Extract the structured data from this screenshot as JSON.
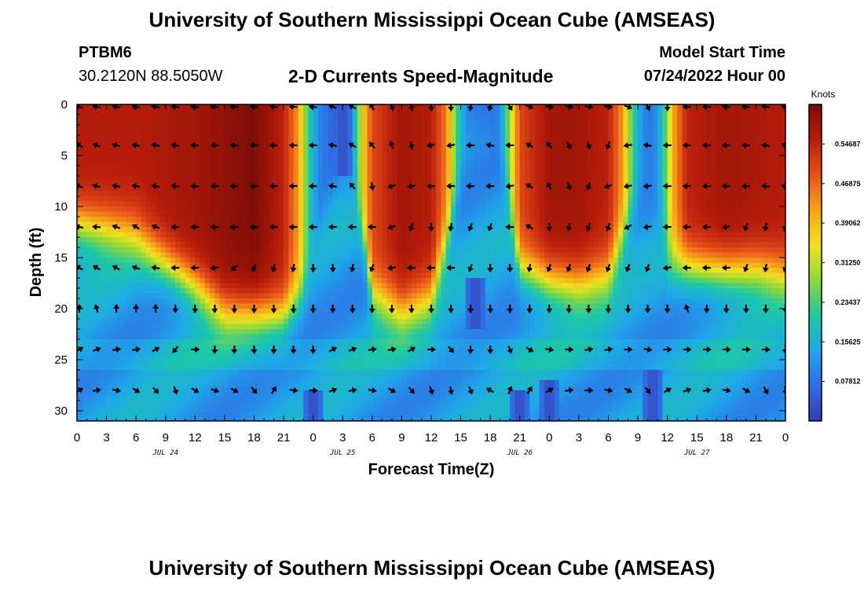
{
  "header": {
    "title": "University of Southern Mississippi Ocean Cube (AMSEAS)",
    "station_id": "PTBM6",
    "station_coords": "30.2120N  88.5050W",
    "subtitle": "2-D Currents Speed-Magnitude",
    "start_label": "Model Start Time",
    "start_value": "07/24/2022 Hour 00"
  },
  "footer": {
    "title": "University of Southern Mississippi Ocean Cube (AMSEAS)"
  },
  "colors": {
    "arrow": "#000000",
    "colormap": [
      "#3a3ab0",
      "#2f6ee6",
      "#1fa8e8",
      "#1cc8a6",
      "#8fd83a",
      "#f0e21e",
      "#f7a21a",
      "#e8521a",
      "#b81d0b",
      "#7a0c06"
    ]
  },
  "chart_data": {
    "type": "heatmap",
    "title": "2-D Currents Speed-Magnitude",
    "xlabel": "Forecast Time(Z)",
    "ylabel": "Depth (ft)",
    "xlim": [
      0,
      72
    ],
    "ylim": [
      0,
      31
    ],
    "x_ticks_hours": [
      0,
      3,
      6,
      9,
      12,
      15,
      18,
      21,
      24,
      27,
      30,
      33,
      36,
      39,
      42,
      45,
      48,
      51,
      54,
      57,
      60,
      63,
      66,
      69,
      72
    ],
    "x_tick_labels": [
      "0",
      "3",
      "6",
      "9",
      "12",
      "15",
      "18",
      "21",
      "0",
      "3",
      "6",
      "9",
      "12",
      "15",
      "18",
      "21",
      "0",
      "3",
      "6",
      "9",
      "12",
      "15",
      "18",
      "21",
      "0"
    ],
    "y_ticks": [
      0,
      5,
      10,
      15,
      20,
      25,
      30
    ],
    "y_tick_labels": [
      "0",
      "5",
      "10",
      "15",
      "20",
      "25",
      "30"
    ],
    "day_labels": [
      {
        "hour": 9,
        "text": "JUL 24"
      },
      {
        "hour": 27,
        "text": "JUL 25"
      },
      {
        "hour": 45,
        "text": "JUL 26"
      },
      {
        "hour": 63,
        "text": "JUL 27"
      }
    ],
    "colorbar": {
      "unit": "Knots",
      "min": 0,
      "max": 0.625,
      "tick_values": [
        0.546875,
        0.46875,
        0.390625,
        0.3125,
        0.234375,
        0.15625,
        0.078125
      ],
      "tick_labels": [
        "0.54687",
        "0.46875",
        "0.39062",
        "0.31250",
        "0.23437",
        "0.15625",
        "0.07812"
      ]
    },
    "speed_model": {
      "description": "Approximate current speed (knots) by forecast hour and depth read from colors",
      "surface_speed_by_hour": [
        [
          0,
          0.56
        ],
        [
          6,
          0.56
        ],
        [
          12,
          0.58
        ],
        [
          18,
          0.62
        ],
        [
          21,
          0.55
        ],
        [
          22.5,
          0.42
        ],
        [
          23.5,
          0.22
        ],
        [
          24.5,
          0.1
        ],
        [
          26,
          0.05
        ],
        [
          27,
          0.05
        ],
        [
          28,
          0.12
        ],
        [
          29,
          0.35
        ],
        [
          30,
          0.5
        ],
        [
          33,
          0.58
        ],
        [
          36,
          0.56
        ],
        [
          37.5,
          0.45
        ],
        [
          38.5,
          0.25
        ],
        [
          39.5,
          0.1
        ],
        [
          41,
          0.06
        ],
        [
          42,
          0.05
        ],
        [
          43,
          0.1
        ],
        [
          44,
          0.3
        ],
        [
          45,
          0.5
        ],
        [
          48,
          0.58
        ],
        [
          51,
          0.58
        ],
        [
          54,
          0.55
        ],
        [
          55.5,
          0.42
        ],
        [
          56.5,
          0.22
        ],
        [
          57.5,
          0.1
        ],
        [
          58.5,
          0.08
        ],
        [
          59.5,
          0.18
        ],
        [
          60.5,
          0.4
        ],
        [
          62,
          0.55
        ],
        [
          66,
          0.58
        ],
        [
          72,
          0.56
        ]
      ],
      "front_depth_by_hour": [
        [
          0,
          12
        ],
        [
          6,
          13
        ],
        [
          9,
          15.5
        ],
        [
          12,
          18
        ],
        [
          15,
          20.5
        ],
        [
          18,
          20.5
        ],
        [
          21,
          20.5
        ],
        [
          23,
          18
        ],
        [
          24.5,
          12
        ],
        [
          26,
          6
        ],
        [
          27,
          4
        ],
        [
          29,
          12
        ],
        [
          30,
          19
        ],
        [
          33,
          20.5
        ],
        [
          36,
          19
        ],
        [
          38,
          12
        ],
        [
          39.5,
          4
        ],
        [
          42,
          2
        ],
        [
          44,
          10
        ],
        [
          45,
          16
        ],
        [
          48,
          17.5
        ],
        [
          51,
          18
        ],
        [
          54,
          17
        ],
        [
          56,
          12
        ],
        [
          57.5,
          8
        ],
        [
          59,
          10
        ],
        [
          60,
          15
        ],
        [
          63,
          16
        ],
        [
          66,
          16.5
        ],
        [
          69,
          16.5
        ],
        [
          72,
          17
        ]
      ],
      "deep_slow_cores": [
        {
          "hour": 24,
          "depth_from": 28,
          "depth_to": 31
        },
        {
          "hour": 48,
          "depth_from": 27,
          "depth_to": 31
        },
        {
          "hour": 27,
          "depth_from": 0,
          "depth_to": 7
        },
        {
          "hour": 40.5,
          "depth_from": 17,
          "depth_to": 22
        },
        {
          "hour": 58.5,
          "depth_from": 26,
          "depth_to": 31
        },
        {
          "hour": 45,
          "depth_from": 28,
          "depth_to": 31
        }
      ]
    },
    "vectors": {
      "hours": [
        0,
        2,
        4,
        6,
        8,
        10,
        12,
        14,
        16,
        18,
        20,
        22,
        24,
        26,
        28,
        30,
        32,
        34,
        36,
        38,
        40,
        42,
        44,
        46,
        48,
        50,
        52,
        54,
        56,
        58,
        60,
        62,
        64,
        66,
        68,
        70,
        72
      ],
      "depths": [
        0,
        4,
        8,
        12,
        16,
        20,
        24,
        28
      ],
      "directions_deg": [
        [
          285,
          280,
          280,
          280,
          280,
          275,
          275,
          275,
          275,
          275,
          275,
          275,
          280,
          290,
          300,
          330,
          160,
          170,
          175,
          180,
          190,
          200,
          150,
          110,
          100,
          100,
          95,
          100,
          110,
          150,
          180,
          270,
          270,
          275,
          275,
          275,
          275
        ],
        [
          300,
          290,
          285,
          280,
          280,
          280,
          275,
          270,
          270,
          270,
          270,
          270,
          270,
          280,
          300,
          320,
          340,
          170,
          260,
          260,
          270,
          280,
          270,
          300,
          320,
          150,
          160,
          200,
          260,
          280,
          270,
          270,
          270,
          270,
          270,
          280,
          285
        ],
        [
          290,
          285,
          280,
          280,
          280,
          275,
          275,
          270,
          270,
          270,
          270,
          270,
          270,
          280,
          320,
          170,
          250,
          260,
          270,
          270,
          270,
          270,
          260,
          300,
          330,
          160,
          200,
          250,
          260,
          265,
          270,
          270,
          270,
          270,
          270,
          275,
          280
        ],
        [
          280,
          275,
          290,
          300,
          290,
          270,
          270,
          270,
          270,
          270,
          270,
          270,
          270,
          270,
          270,
          270,
          250,
          200,
          180,
          190,
          200,
          200,
          270,
          300,
          180,
          190,
          200,
          200,
          240,
          260,
          270,
          270,
          270,
          260,
          200,
          190,
          200
        ],
        [
          300,
          300,
          300,
          290,
          280,
          270,
          270,
          260,
          230,
          200,
          190,
          190,
          180,
          180,
          190,
          200,
          260,
          270,
          270,
          270,
          200,
          180,
          180,
          190,
          200,
          200,
          200,
          200,
          200,
          200,
          260,
          270,
          270,
          270,
          200,
          190,
          200
        ],
        [
          0,
          345,
          0,
          0,
          0,
          180,
          180,
          180,
          180,
          180,
          180,
          180,
          180,
          180,
          180,
          180,
          180,
          180,
          180,
          180,
          180,
          180,
          180,
          180,
          180,
          180,
          180,
          180,
          180,
          180,
          180,
          340,
          180,
          180,
          180,
          180,
          180
        ],
        [
          60,
          70,
          80,
          80,
          60,
          220,
          90,
          180,
          180,
          180,
          180,
          180,
          180,
          60,
          70,
          80,
          80,
          60,
          90,
          140,
          180,
          180,
          160,
          120,
          100,
          90,
          80,
          80,
          90,
          100,
          90,
          90,
          90,
          90,
          90,
          90,
          180
        ],
        [
          60,
          80,
          100,
          120,
          140,
          160,
          120,
          110,
          120,
          140,
          30,
          100,
          90,
          70,
          80,
          100,
          120,
          140,
          160,
          170,
          160,
          300,
          20,
          30,
          60,
          80,
          90,
          100,
          120,
          140,
          60,
          70,
          80,
          100,
          120,
          150,
          170
        ]
      ]
    }
  }
}
